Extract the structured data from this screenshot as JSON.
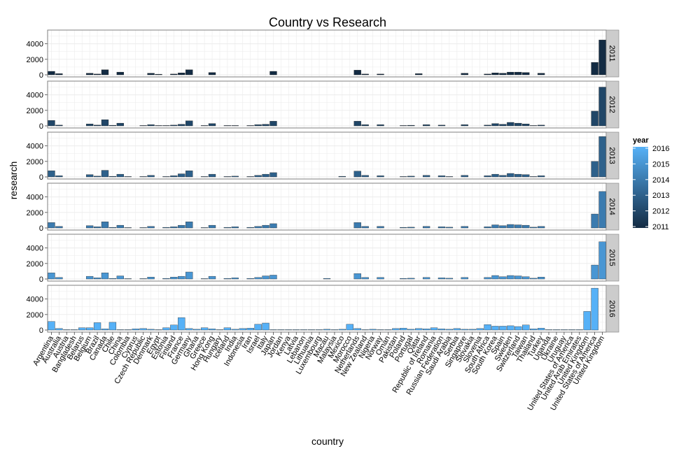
{
  "chart_data": {
    "type": "bar",
    "title": "Country vs Research",
    "xlabel": "country",
    "ylabel": "research",
    "ylim": [
      0,
      5500
    ],
    "yticks": [
      0,
      2000,
      4000
    ],
    "facet_by": "year",
    "legend": {
      "title": "year",
      "placement": "right",
      "labels": [
        "2016",
        "2015",
        "2014",
        "2013",
        "2012",
        "2011"
      ]
    },
    "colors": {
      "low": "#132B43",
      "high": "#56B1F7",
      "panel_bg": "#ffffff",
      "grid": "#ebebeb",
      "strip_bg": "#cccccc",
      "border": "#7f7f7f"
    },
    "grid": true,
    "categories": [
      "Argentina",
      "Australia",
      "Austria",
      "Bangladesh",
      "Belarus",
      "Belgium",
      "Brazil",
      "Canada",
      "Chile",
      "China",
      "Colombia",
      "Cyprus",
      "Czech Republic",
      "Denmark",
      "Egypt",
      "Estonia",
      "Finland",
      "France",
      "Germany",
      "Ghana",
      "Greece",
      "Hong Kong",
      "Hungary",
      "Iceland",
      "India",
      "Indonesia",
      "Iran",
      "Israel",
      "Italy",
      "Japan",
      "Jordan",
      "Kenya",
      "Latvia",
      "Lebanon",
      "Lithuania",
      "Luxembourg",
      "Macau",
      "Malaysia",
      "Mexico",
      "Morocco",
      "Netherlands",
      "New Zealand",
      "Nigeria",
      "Norway",
      "Oman",
      "Pakistan",
      "Poland",
      "Portugal",
      "Qatar",
      "Republic of Ireland",
      "Romania",
      "Russian Federation",
      "Saudi Arabia",
      "Serbia",
      "Singapore",
      "Slovakia",
      "Slovenia",
      "South Africa",
      "South Korea",
      "Spain",
      "Sweden",
      "Switzerland",
      "Taiwan",
      "Thailand",
      "Turkey",
      "Uganda",
      "Ukraine",
      "Uruguay",
      "United States of America",
      "United Arab Emirates",
      "United Kingdom",
      "United States of America",
      "United Kingdom"
    ],
    "series": [
      {
        "name": "2011",
        "values": [
          450,
          150,
          0,
          0,
          0,
          200,
          100,
          650,
          0,
          350,
          0,
          0,
          0,
          200,
          80,
          0,
          100,
          250,
          650,
          0,
          0,
          300,
          0,
          0,
          0,
          0,
          0,
          0,
          0,
          450,
          0,
          0,
          0,
          0,
          0,
          0,
          0,
          0,
          0,
          0,
          600,
          100,
          0,
          100,
          0,
          0,
          0,
          0,
          150,
          0,
          0,
          0,
          0,
          0,
          200,
          0,
          0,
          100,
          250,
          200,
          350,
          350,
          300,
          0,
          200,
          0,
          0,
          0,
          0,
          0,
          0,
          1600,
          4500
        ]
      },
      {
        "name": "2012",
        "values": [
          700,
          100,
          0,
          0,
          0,
          250,
          100,
          800,
          80,
          350,
          0,
          0,
          50,
          150,
          50,
          50,
          100,
          200,
          650,
          0,
          50,
          300,
          0,
          50,
          50,
          0,
          50,
          150,
          200,
          600,
          0,
          0,
          0,
          0,
          0,
          0,
          0,
          0,
          0,
          0,
          600,
          150,
          0,
          150,
          0,
          0,
          50,
          80,
          0,
          150,
          0,
          100,
          0,
          0,
          150,
          0,
          0,
          100,
          300,
          200,
          450,
          350,
          250,
          50,
          100,
          0,
          0,
          0,
          0,
          0,
          0,
          1900,
          5000
        ]
      },
      {
        "name": "2013",
        "values": [
          800,
          150,
          0,
          0,
          0,
          300,
          100,
          850,
          80,
          350,
          50,
          0,
          50,
          200,
          0,
          50,
          150,
          400,
          800,
          0,
          50,
          350,
          0,
          50,
          100,
          0,
          50,
          200,
          350,
          550,
          0,
          0,
          0,
          0,
          0,
          0,
          0,
          0,
          80,
          0,
          750,
          200,
          0,
          150,
          0,
          0,
          50,
          100,
          0,
          200,
          0,
          150,
          50,
          0,
          200,
          0,
          0,
          150,
          350,
          200,
          450,
          350,
          300,
          50,
          150,
          0,
          0,
          0,
          0,
          0,
          0,
          2000,
          5200
        ]
      },
      {
        "name": "2014",
        "values": [
          700,
          200,
          0,
          0,
          0,
          300,
          150,
          800,
          80,
          350,
          50,
          0,
          50,
          200,
          0,
          80,
          150,
          350,
          800,
          0,
          50,
          350,
          0,
          80,
          150,
          0,
          80,
          200,
          350,
          550,
          0,
          0,
          0,
          0,
          0,
          0,
          0,
          0,
          0,
          0,
          700,
          200,
          0,
          200,
          0,
          0,
          80,
          100,
          0,
          200,
          0,
          150,
          100,
          0,
          200,
          0,
          0,
          150,
          400,
          300,
          450,
          400,
          350,
          100,
          200,
          0,
          0,
          0,
          0,
          0,
          0,
          1800,
          4700
        ]
      },
      {
        "name": "2015",
        "values": [
          800,
          200,
          0,
          0,
          0,
          350,
          150,
          800,
          80,
          400,
          50,
          0,
          50,
          250,
          0,
          80,
          250,
          350,
          900,
          0,
          50,
          350,
          0,
          80,
          150,
          0,
          80,
          200,
          400,
          500,
          0,
          0,
          0,
          0,
          0,
          0,
          80,
          0,
          0,
          0,
          700,
          200,
          0,
          200,
          0,
          0,
          80,
          100,
          0,
          200,
          0,
          150,
          100,
          0,
          200,
          0,
          0,
          200,
          450,
          300,
          450,
          400,
          300,
          100,
          250,
          0,
          0,
          0,
          0,
          0,
          0,
          1800,
          4800
        ]
      },
      {
        "name": "2016",
        "values": [
          1100,
          200,
          50,
          50,
          300,
          300,
          950,
          150,
          1000,
          50,
          50,
          150,
          200,
          100,
          50,
          300,
          650,
          1600,
          200,
          100,
          300,
          150,
          50,
          300,
          100,
          200,
          250,
          750,
          900,
          50,
          50,
          50,
          50,
          50,
          50,
          50,
          100,
          50,
          100,
          750,
          200,
          50,
          100,
          50,
          50,
          200,
          250,
          100,
          200,
          150,
          300,
          150,
          100,
          200,
          100,
          100,
          200,
          700,
          500,
          500,
          550,
          450,
          650,
          150,
          250,
          50,
          50,
          50,
          50,
          50,
          2400,
          5400,
          0
        ]
      }
    ]
  }
}
